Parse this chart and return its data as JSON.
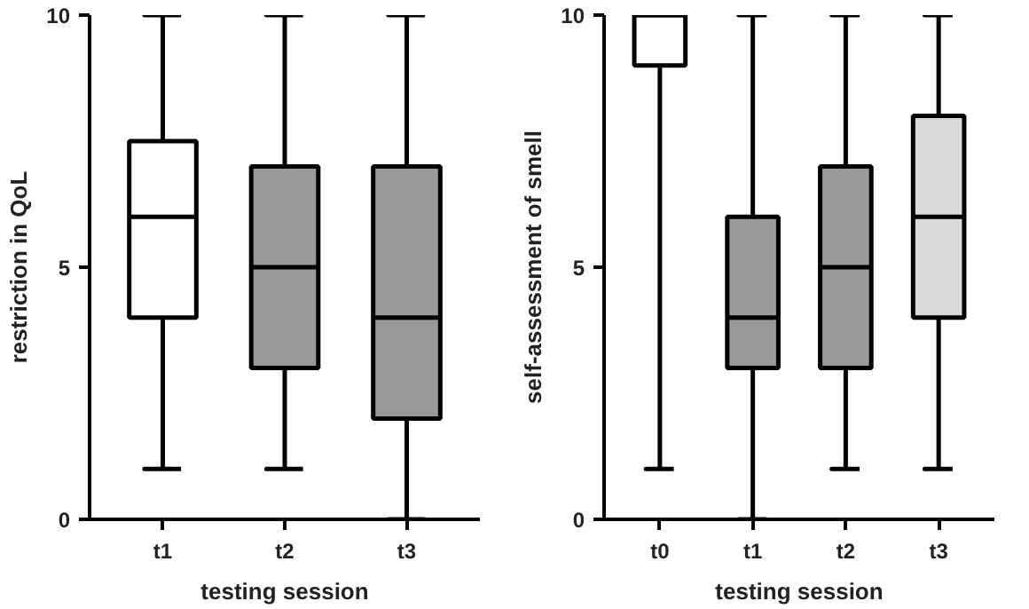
{
  "chart_data": [
    {
      "type": "box",
      "xlabel": "testing session",
      "ylabel": "restriction in QoL",
      "categories": [
        "t1",
        "t2",
        "t3"
      ],
      "colors": [
        "#ffffff",
        "#999999",
        "#999999"
      ],
      "ylim": [
        0,
        10
      ],
      "yticks": [
        0,
        5,
        10
      ],
      "grid": false,
      "boxes": [
        {
          "low": 1,
          "q1": 4,
          "median": 6,
          "q3": 7.5,
          "high": 10
        },
        {
          "low": 1,
          "q1": 3,
          "median": 5,
          "q3": 7,
          "high": 10
        },
        {
          "low": 0,
          "q1": 2,
          "median": 4,
          "q3": 7,
          "high": 10
        }
      ]
    },
    {
      "type": "box",
      "xlabel": "testing session",
      "ylabel": "self-assessment of smell",
      "categories": [
        "t0",
        "t1",
        "t2",
        "t3"
      ],
      "colors": [
        "#ffffff",
        "#999999",
        "#999999",
        "#d9d9d9"
      ],
      "ylim": [
        0,
        10
      ],
      "yticks": [
        0,
        5,
        10
      ],
      "grid": false,
      "boxes": [
        {
          "low": 1,
          "q1": 9,
          "median": 10,
          "q3": 10,
          "high": 10
        },
        {
          "low": 0,
          "q1": 3,
          "median": 4,
          "q3": 6,
          "high": 10
        },
        {
          "low": 1,
          "q1": 3,
          "median": 5,
          "q3": 7,
          "high": 10
        },
        {
          "low": 1,
          "q1": 4,
          "median": 6,
          "q3": 8,
          "high": 10
        }
      ]
    }
  ]
}
